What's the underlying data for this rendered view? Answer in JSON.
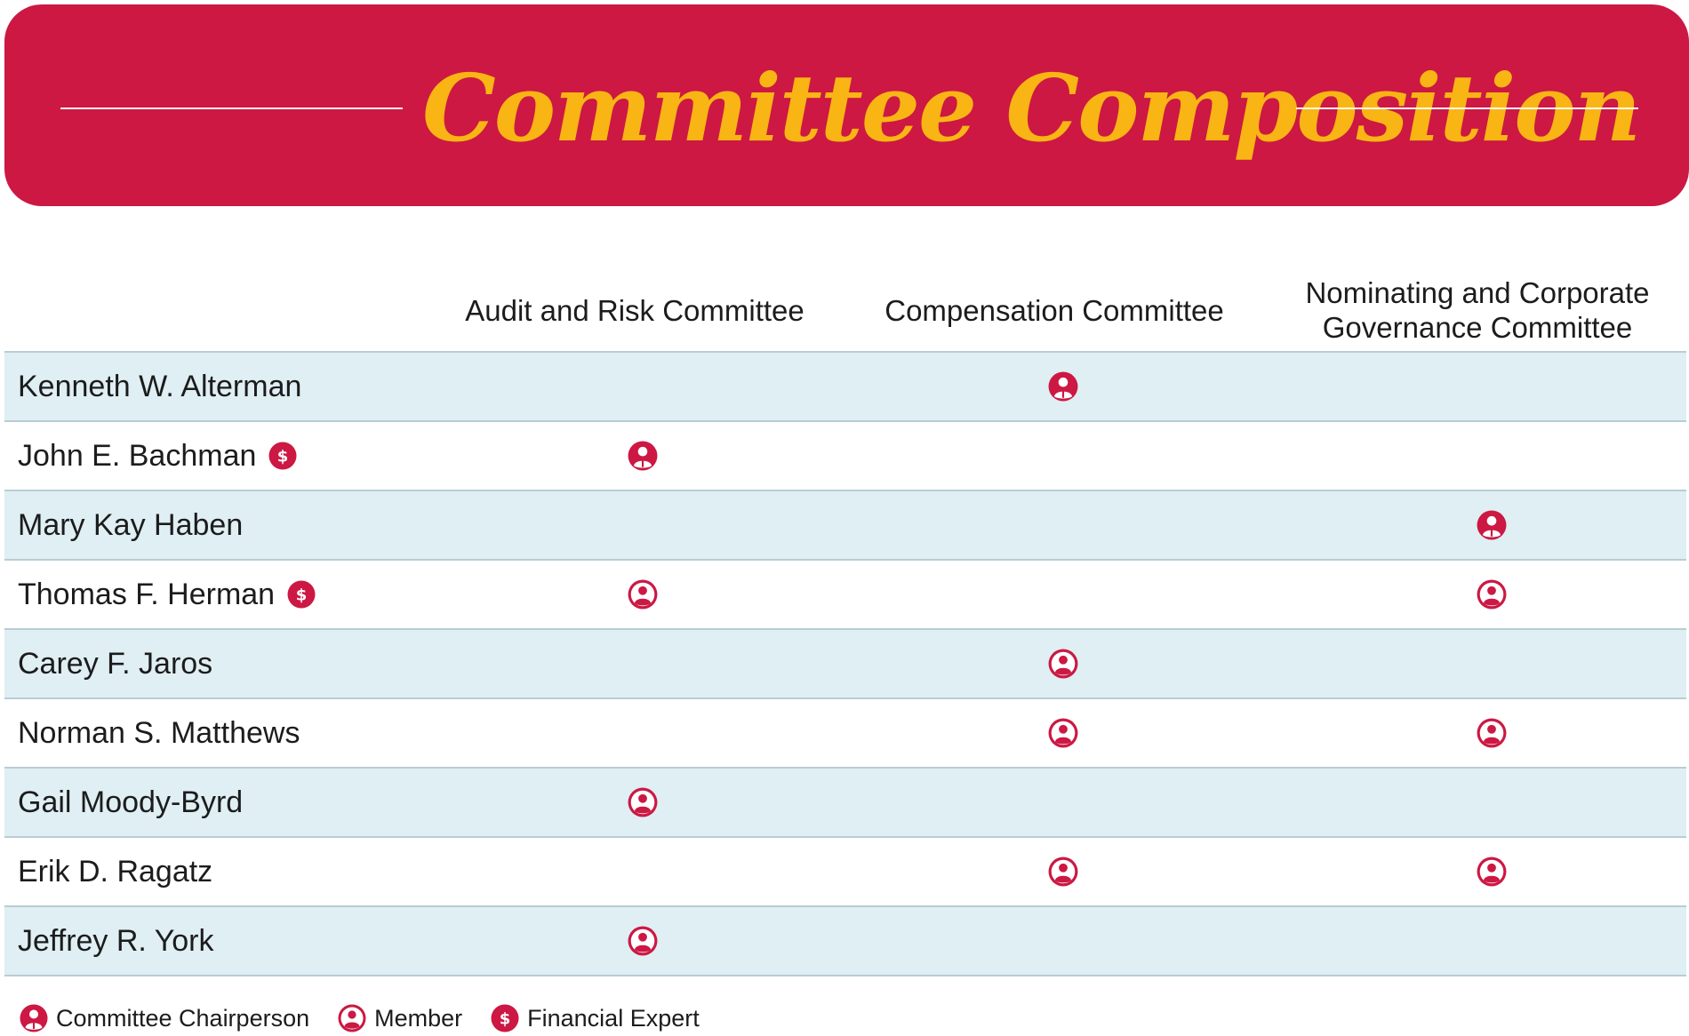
{
  "title": "Committee Composition",
  "colors": {
    "brand_red": "#cc1843",
    "title_gold": "#f9b514",
    "row_shade": "#dfeff4",
    "rule": "#b7cdd6"
  },
  "columns": [
    {
      "label_line1": "Audit and Risk Committee",
      "label_line2": ""
    },
    {
      "label_line1": "Compensation Committee",
      "label_line2": ""
    },
    {
      "label_line1": "Nominating and Corporate",
      "label_line2": "Governance Committee"
    }
  ],
  "directors": [
    {
      "name": "Kenneth W. Alterman",
      "financial_expert": false,
      "roles": [
        "",
        "chair",
        ""
      ]
    },
    {
      "name": "John E. Bachman",
      "financial_expert": true,
      "roles": [
        "chair",
        "",
        ""
      ]
    },
    {
      "name": "Mary Kay Haben",
      "financial_expert": false,
      "roles": [
        "",
        "",
        "chair"
      ]
    },
    {
      "name": "Thomas F. Herman",
      "financial_expert": true,
      "roles": [
        "member",
        "",
        "member"
      ]
    },
    {
      "name": "Carey F. Jaros",
      "financial_expert": false,
      "roles": [
        "",
        "member",
        ""
      ]
    },
    {
      "name": "Norman S. Matthews",
      "financial_expert": false,
      "roles": [
        "",
        "member",
        "member"
      ]
    },
    {
      "name": "Gail Moody-Byrd",
      "financial_expert": false,
      "roles": [
        "member",
        "",
        ""
      ]
    },
    {
      "name": "Erik D. Ragatz",
      "financial_expert": false,
      "roles": [
        "",
        "member",
        "member"
      ]
    },
    {
      "name": "Jeffrey R. York",
      "financial_expert": false,
      "roles": [
        "member",
        "",
        ""
      ]
    }
  ],
  "legend": {
    "chair_label": "Committee Chairperson",
    "member_label": "Member",
    "expert_label": "Financial Expert",
    "chair_icon": "chairperson-icon",
    "member_icon": "member-icon",
    "expert_icon": "financial-expert-icon"
  },
  "icon_glyphs": {
    "dollar": "$"
  }
}
